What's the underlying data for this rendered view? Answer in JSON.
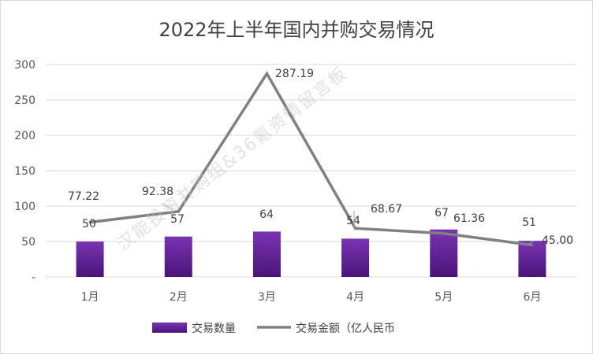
{
  "chart_data": {
    "type": "bar",
    "title": "2022年上半年国内并购交易情况",
    "categories": [
      "1月",
      "2月",
      "3月",
      "4月",
      "5月",
      "6月"
    ],
    "y_ticks": [
      "-",
      "50",
      "100",
      "150",
      "200",
      "250",
      "300"
    ],
    "ylim": [
      0,
      300
    ],
    "grid": true,
    "legend_position": "bottom",
    "watermark": "汉能投资并购组&36氪资情留言板",
    "series": [
      {
        "name": "交易数量",
        "type": "bar",
        "color": "#6a2aa0",
        "values": [
          50,
          57,
          64,
          54,
          67,
          51
        ],
        "labels": [
          "50",
          "57",
          "64",
          "54",
          "67",
          "51"
        ]
      },
      {
        "name": "交易金额（亿人民币",
        "type": "line",
        "color": "#808080",
        "values": [
          77.22,
          92.38,
          287.19,
          68.67,
          61.36,
          45.0
        ],
        "labels": [
          "77.22",
          "92.38",
          "287.19",
          "68.67",
          "61.36",
          "45.00"
        ]
      }
    ]
  }
}
